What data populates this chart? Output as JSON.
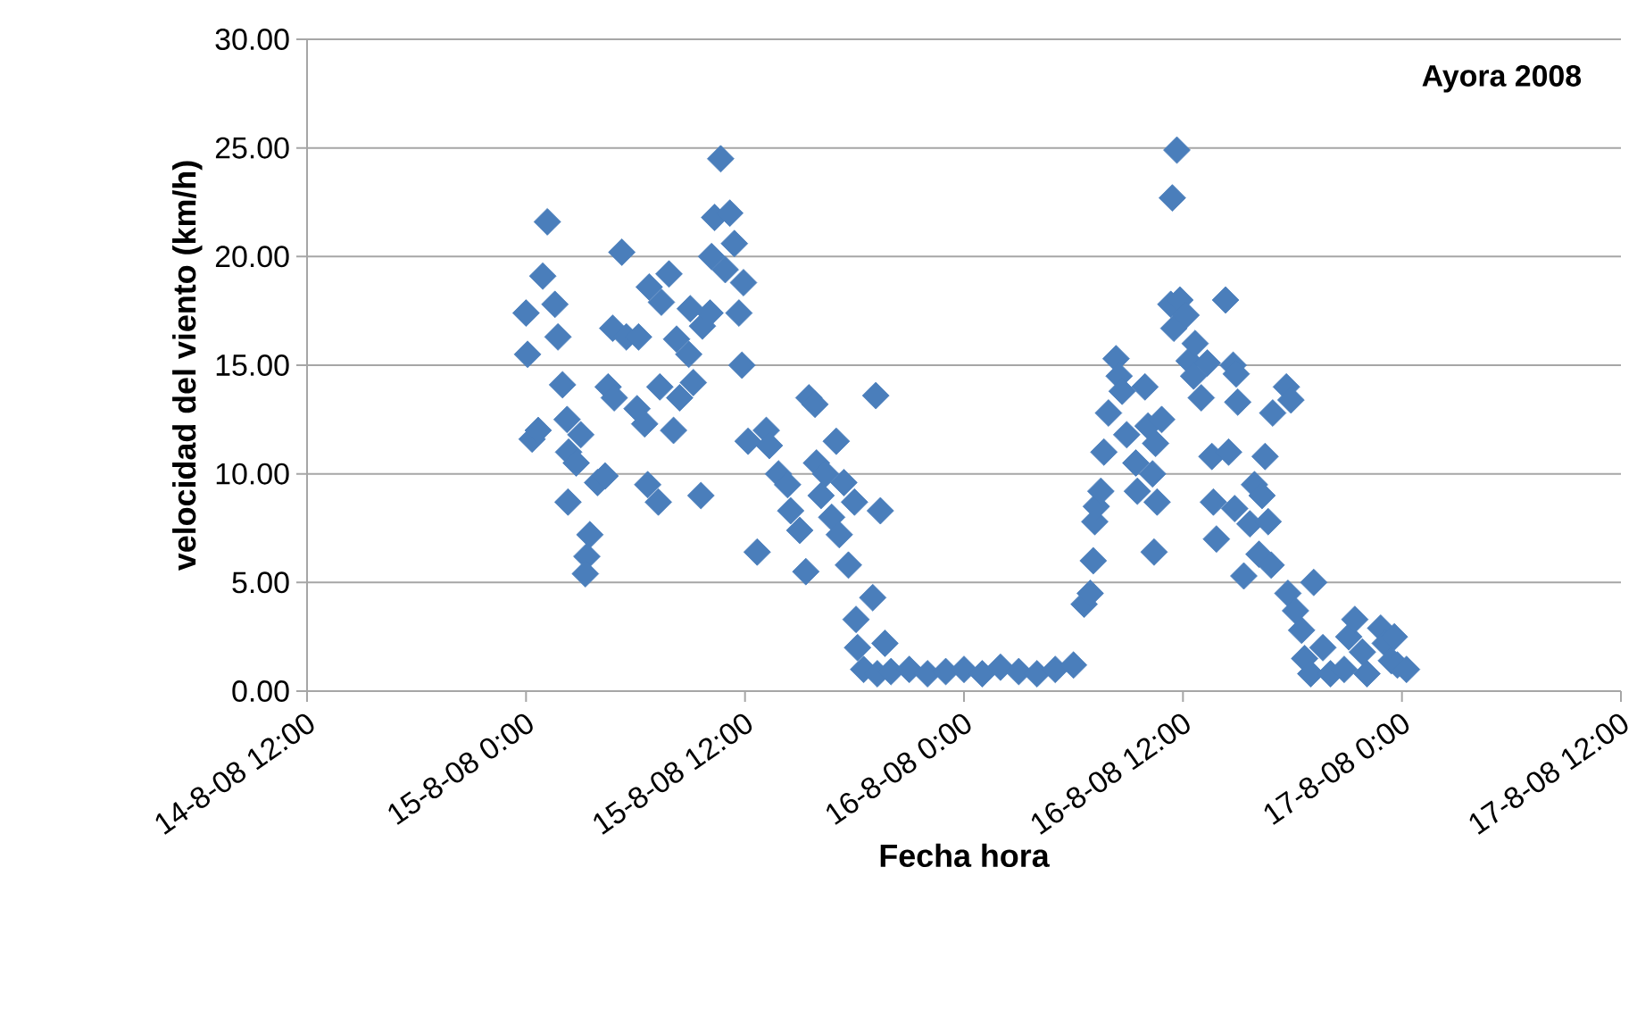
{
  "chart_data": {
    "type": "scatter",
    "xlabel": "Fecha hora",
    "ylabel": "velocidad del viento (km/h)",
    "annotations": [
      "Ayora 2008"
    ],
    "xlim": [
      "2008-08-14T12:00",
      "2008-08-17T12:00"
    ],
    "xticks": [
      {
        "value": "2008-08-14T12:00",
        "label": "14-8-08 12:00"
      },
      {
        "value": "2008-08-15T00:00",
        "label": "15-8-08 0:00"
      },
      {
        "value": "2008-08-15T12:00",
        "label": "15-8-08 12:00"
      },
      {
        "value": "2008-08-16T00:00",
        "label": "16-8-08 0:00"
      },
      {
        "value": "2008-08-16T12:00",
        "label": "16-8-08 12:00"
      },
      {
        "value": "2008-08-17T00:00",
        "label": "17-8-08 0:00"
      },
      {
        "value": "2008-08-17T12:00",
        "label": "17-8-08 12:00"
      }
    ],
    "ylim": [
      0,
      30
    ],
    "yticks": [
      {
        "value": 0,
        "label": "0.00"
      },
      {
        "value": 5,
        "label": "5.00"
      },
      {
        "value": 10,
        "label": "10.00"
      },
      {
        "value": 15,
        "label": "15.00"
      },
      {
        "value": 20,
        "label": "20.00"
      },
      {
        "value": 25,
        "label": "25.00"
      },
      {
        "value": 30,
        "label": "30.00"
      }
    ],
    "grid": "y",
    "marker": "diamond",
    "series": [
      {
        "color": "#4a7ebb",
        "x": [
          "2008-08-15T00:00",
          "2008-08-15T00:05",
          "2008-08-15T00:20",
          "2008-08-15T00:40",
          "2008-08-15T00:55",
          "2008-08-15T01:10",
          "2008-08-15T01:35",
          "2008-08-15T01:45",
          "2008-08-15T02:00",
          "2008-08-15T02:15",
          "2008-08-15T02:20",
          "2008-08-15T02:18",
          "2008-08-15T02:45",
          "2008-08-15T03:00",
          "2008-08-15T03:30",
          "2008-08-15T03:20",
          "2008-08-15T03:15",
          "2008-08-15T03:55",
          "2008-08-15T04:20",
          "2008-08-15T04:30",
          "2008-08-15T04:50",
          "2008-08-15T04:45",
          "2008-08-15T05:30",
          "2008-08-15T05:15",
          "2008-08-15T06:10",
          "2008-08-15T06:05",
          "2008-08-15T06:30",
          "2008-08-15T06:40",
          "2008-08-15T07:15",
          "2008-08-15T06:45",
          "2008-08-15T07:25",
          "2008-08-15T07:20",
          "2008-08-15T07:50",
          "2008-08-15T08:15",
          "2008-08-15T08:05",
          "2008-08-15T08:25",
          "2008-08-15T09:00",
          "2008-08-15T08:55",
          "2008-08-15T09:10",
          "2008-08-15T09:35",
          "2008-08-15T09:40",
          "2008-08-15T10:05",
          "2008-08-15T10:10",
          "2008-08-15T10:20",
          "2008-08-15T10:40",
          "2008-08-15T10:55",
          "2008-08-15T11:10",
          "2008-08-15T11:25",
          "2008-08-15T11:40",
          "2008-08-15T11:55",
          "2008-08-15T11:50",
          "2008-08-15T12:10",
          "2008-08-15T13:10",
          "2008-08-15T12:40",
          "2008-08-15T13:20",
          "2008-08-15T13:50",
          "2008-08-15T14:20",
          "2008-08-15T14:30",
          "2008-08-15T15:00",
          "2008-08-15T15:20",
          "2008-08-15T15:30",
          "2008-08-15T15:50",
          "2008-08-15T15:55",
          "2008-08-15T16:10",
          "2008-08-15T16:25",
          "2008-08-15T16:45",
          "2008-08-15T17:00",
          "2008-08-15T17:10",
          "2008-08-15T17:25",
          "2008-08-15T17:40",
          "2008-08-15T18:00",
          "2008-08-15T18:05",
          "2008-08-15T18:10",
          "2008-08-15T18:30",
          "2008-08-15T19:00",
          "2008-08-15T19:10",
          "2008-08-15T19:15",
          "2008-08-15T19:25",
          "2008-08-15T19:40",
          "2008-08-15T20:00",
          "2008-08-15T21:00",
          "2008-08-15T22:00",
          "2008-08-15T23:00",
          "2008-08-16T00:00",
          "2008-08-16T01:00",
          "2008-08-16T02:00",
          "2008-08-16T03:00",
          "2008-08-16T04:00",
          "2008-08-16T05:00",
          "2008-08-16T06:00",
          "2008-08-16T06:35",
          "2008-08-16T06:55",
          "2008-08-16T07:05",
          "2008-08-16T07:10",
          "2008-08-16T07:15",
          "2008-08-16T07:30",
          "2008-08-16T07:40",
          "2008-08-16T07:55",
          "2008-08-16T08:20",
          "2008-08-16T08:30",
          "2008-08-16T08:40",
          "2008-08-16T08:55",
          "2008-08-16T09:25",
          "2008-08-16T09:30",
          "2008-08-16T09:55",
          "2008-08-16T10:05",
          "2008-08-16T10:20",
          "2008-08-16T10:25",
          "2008-08-16T10:30",
          "2008-08-16T10:35",
          "2008-08-16T10:50",
          "2008-08-16T11:20",
          "2008-08-16T11:25",
          "2008-08-16T11:30",
          "2008-08-16T11:40",
          "2008-08-16T11:50",
          "2008-08-16T12:10",
          "2008-08-16T12:20",
          "2008-08-16T12:35",
          "2008-08-16T12:40",
          "2008-08-16T13:00",
          "2008-08-16T13:20",
          "2008-08-16T13:35",
          "2008-08-16T13:40",
          "2008-08-16T13:50",
          "2008-08-16T14:20",
          "2008-08-16T14:30",
          "2008-08-16T14:45",
          "2008-08-16T14:50",
          "2008-08-16T14:55",
          "2008-08-16T15:00",
          "2008-08-16T15:20",
          "2008-08-16T15:40",
          "2008-08-16T15:55",
          "2008-08-16T16:10",
          "2008-08-16T16:20",
          "2008-08-16T16:30",
          "2008-08-16T16:40",
          "2008-08-16T16:50",
          "2008-08-16T16:55",
          "2008-08-16T17:40",
          "2008-08-16T17:45",
          "2008-08-16T17:55",
          "2008-08-16T18:10",
          "2008-08-16T18:30",
          "2008-08-16T18:40",
          "2008-08-16T19:00",
          "2008-08-16T19:10",
          "2008-08-16T19:40",
          "2008-08-16T20:05",
          "2008-08-16T20:50",
          "2008-08-16T21:05",
          "2008-08-16T21:25",
          "2008-08-16T21:50",
          "2008-08-16T22:05",
          "2008-08-16T22:50",
          "2008-08-16T23:05",
          "2008-08-16T23:25",
          "2008-08-16T23:35",
          "2008-08-16T23:45",
          "2008-08-17T00:15"
        ],
        "values": [
          17.4,
          15.5,
          11.6,
          12.0,
          19.1,
          21.6,
          17.8,
          16.3,
          14.1,
          12.5,
          11.0,
          8.7,
          10.5,
          11.8,
          7.2,
          6.2,
          5.4,
          9.6,
          9.9,
          14.0,
          13.5,
          16.7,
          16.3,
          20.2,
          16.3,
          13.0,
          12.3,
          9.5,
          8.7,
          18.6,
          17.9,
          14.0,
          19.2,
          16.2,
          12.0,
          13.5,
          17.6,
          15.5,
          14.2,
          9.0,
          16.8,
          17.4,
          20.0,
          21.8,
          24.5,
          19.4,
          22.0,
          20.6,
          17.4,
          18.8,
          15.0,
          11.5,
          12.0,
          6.4,
          11.3,
          10.0,
          9.5,
          8.3,
          7.4,
          5.5,
          13.5,
          13.2,
          10.5,
          9.0,
          10.0,
          8.0,
          11.5,
          7.2,
          9.6,
          5.8,
          8.7,
          3.3,
          2.0,
          1.0,
          4.3,
          13.6,
          0.8,
          8.3,
          2.2,
          0.9,
          1.0,
          0.8,
          0.9,
          1.0,
          0.8,
          1.1,
          0.9,
          0.8,
          1.0,
          1.2,
          4.0,
          4.5,
          6.0,
          7.8,
          8.5,
          9.2,
          11.0,
          12.8,
          15.3,
          14.5,
          13.8,
          11.8,
          10.5,
          9.2,
          14.0,
          12.2,
          10.0,
          6.4,
          11.4,
          8.7,
          12.5,
          17.8,
          22.7,
          16.7,
          24.9,
          18.0,
          17.3,
          15.2,
          14.5,
          16.0,
          13.5,
          15.1,
          10.8,
          8.7,
          7.0,
          18.0,
          11.0,
          15.0,
          8.4,
          14.6,
          13.3,
          5.3,
          7.7,
          9.5,
          6.3,
          9.0,
          10.8,
          7.8,
          5.8,
          12.8,
          14.0,
          4.5,
          13.4,
          3.7,
          2.8,
          1.5,
          0.8,
          5.0,
          2.0,
          0.8,
          1.0,
          2.5,
          3.3,
          1.8,
          0.8,
          2.9,
          2.2,
          1.4,
          2.5,
          1.2,
          1.0
        ]
      }
    ]
  }
}
